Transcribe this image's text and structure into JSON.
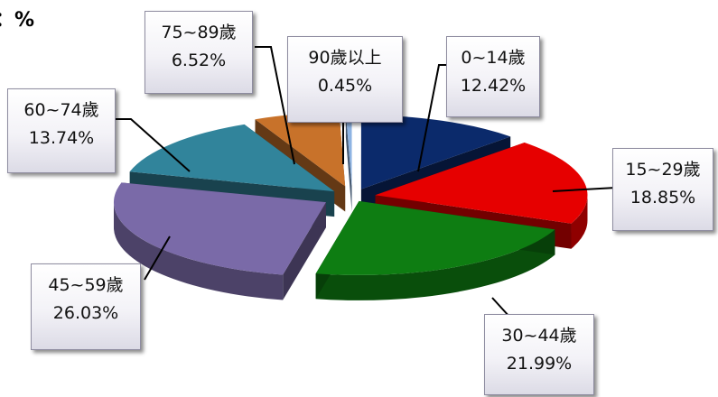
{
  "unit_label": "：%",
  "chart_data": {
    "type": "pie",
    "style": "3d-exploded",
    "legend": "none",
    "categories": [
      "0~14歲",
      "15~29歲",
      "30~44歲",
      "45~59歲",
      "60~74歲",
      "75~89歲",
      "90歲以上"
    ],
    "values": [
      12.42,
      18.85,
      21.99,
      26.03,
      13.74,
      6.52,
      0.45
    ],
    "value_labels": [
      "12.42%",
      "18.85%",
      "21.99%",
      "26.03%",
      "13.74%",
      "6.52%",
      "0.45%"
    ],
    "colors": [
      "#0b2a6b",
      "#e60000",
      "#0e7d12",
      "#7a6aa8",
      "#31849b",
      "#c8722a",
      "#8eb4e3"
    ]
  }
}
